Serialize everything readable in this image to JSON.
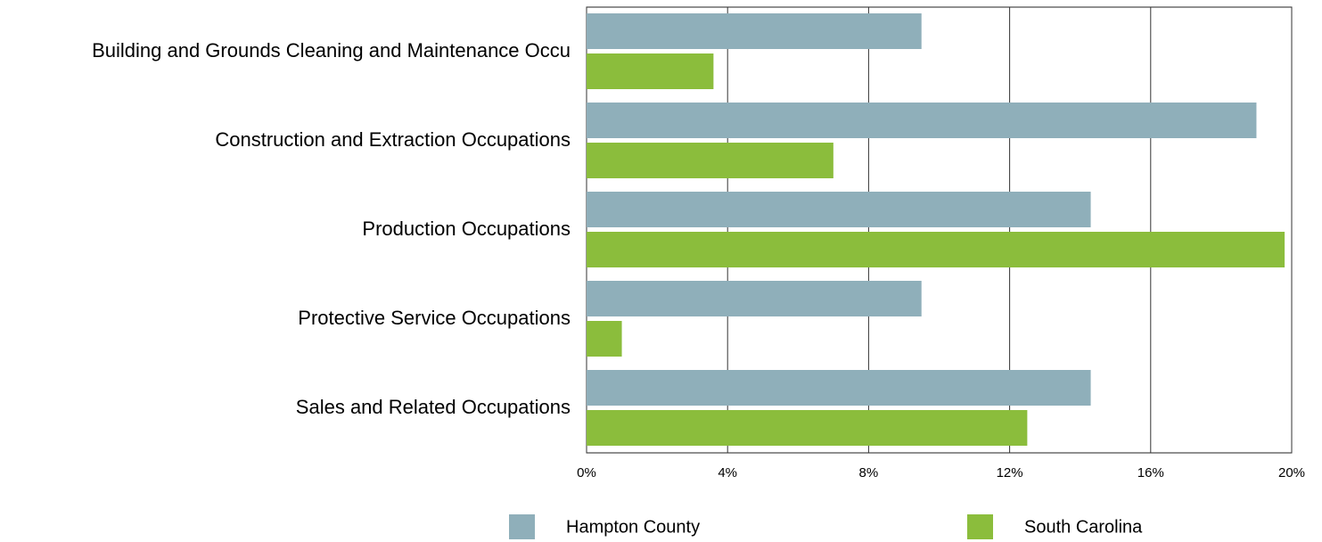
{
  "chart_data": {
    "type": "hbar",
    "categories": [
      "Building and Grounds Cleaning and Maintenance Occu",
      "Construction and Extraction Occupations",
      "Production Occupations",
      "Protective Service Occupations",
      "Sales and Related Occupations"
    ],
    "series": [
      {
        "name": "Hampton County",
        "color": "#8fafba",
        "values": [
          9.5,
          19.0,
          14.3,
          9.5,
          14.3
        ]
      },
      {
        "name": "South Carolina",
        "color": "#8bbd3c",
        "values": [
          3.6,
          7.0,
          19.8,
          1.0,
          12.5
        ]
      }
    ],
    "xlim": [
      0,
      20
    ],
    "xticks": [
      {
        "value": 0,
        "label": "0%"
      },
      {
        "value": 4,
        "label": "4%"
      },
      {
        "value": 8,
        "label": "8%"
      },
      {
        "value": 12,
        "label": "12%"
      },
      {
        "value": 16,
        "label": "16%"
      },
      {
        "value": 20,
        "label": "20%"
      }
    ],
    "grid": true
  }
}
